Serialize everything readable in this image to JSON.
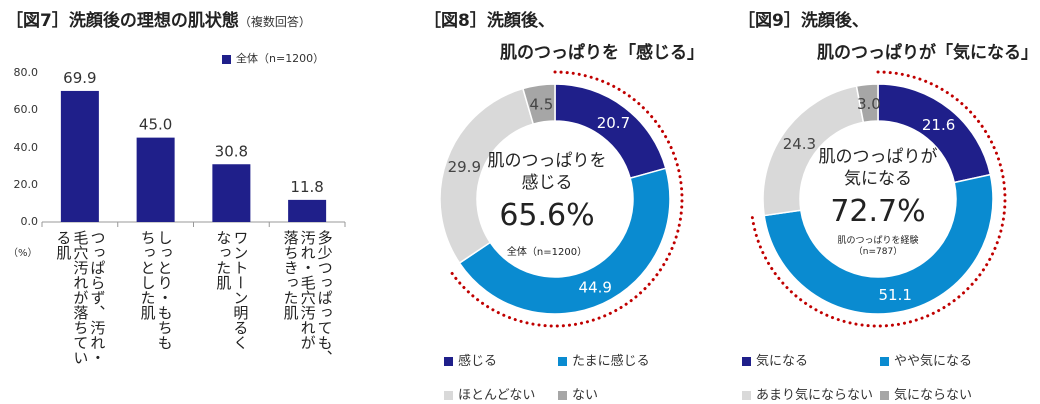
{
  "fig7": {
    "title": "［図7］洗顔後の理想の肌状態",
    "subtitle": "（複数回答）",
    "unit": "（%）",
    "chart_data": {
      "type": "bar",
      "title": "［図7］洗顔後の理想の肌状態（複数回答）",
      "ylabel": "（%）",
      "ylim": [
        0,
        80
      ],
      "yticks": [
        "80.0",
        "60.0",
        "40.0",
        "20.0",
        "0.0"
      ],
      "legend": "全体（n=1200）",
      "categories": [
        "つっぱらず、汚れ・毛穴汚れが落ちている肌",
        "しっとり・もちもちっとした肌",
        "ワントーン明るくなった肌",
        "多少つっぱっても、汚れ・毛穴汚れが落ちきった肌"
      ],
      "category_lines": [
        [
          "つっぱらず、汚れ・",
          "毛穴汚れが落ちてい",
          "る肌"
        ],
        [
          "しっとり・もちも",
          "ちっとした肌"
        ],
        [
          "ワントーン明るく",
          "なった肌"
        ],
        [
          "多少つっぱっても、",
          "汚れ・毛穴汚れが",
          "落ちきった肌"
        ]
      ],
      "values": [
        69.9,
        45.0,
        30.8,
        11.8
      ],
      "value_labels": [
        "69.9",
        "45.0",
        "30.8",
        "11.8"
      ],
      "color": "#1f1f8a"
    }
  },
  "fig8": {
    "title_line1": "［図8］洗顔後、",
    "title_line2": "肌のつっぱりを「感じる」",
    "center_line1": "肌のつっぱりを",
    "center_line2": "感じる",
    "center_value": "65.6%",
    "center_note": "全体（n=1200）",
    "chart_data": {
      "type": "pie",
      "title": "［図8］洗顔後、肌のつっぱりを「感じる」",
      "categories": [
        "感じる",
        "たまに感じる",
        "ほとんどない",
        "ない"
      ],
      "values": [
        20.7,
        44.9,
        29.9,
        4.5
      ],
      "value_labels": [
        "20.7",
        "44.9",
        "29.9",
        "4.5"
      ],
      "colors": [
        "#1f1f8a",
        "#0a8bd0",
        "#d9d9d9",
        "#a6a6a6"
      ],
      "highlight_total": "65.6%"
    }
  },
  "fig9": {
    "title_line1": "［図9］洗顔後、",
    "title_line2": "肌のつっぱりが「気になる」",
    "center_line1": "肌のつっぱりが",
    "center_line2": "気になる",
    "center_value": "72.7%",
    "center_note1": "肌のつっぱりを経験",
    "center_note2": "（n=787）",
    "chart_data": {
      "type": "pie",
      "title": "［図9］洗顔後、肌のつっぱりが「気になる」",
      "categories": [
        "気になる",
        "やや気になる",
        "あまり気にならない",
        "気にならない"
      ],
      "values": [
        21.6,
        51.1,
        24.3,
        3.0
      ],
      "value_labels": [
        "21.6",
        "51.1",
        "24.3",
        "3.0"
      ],
      "colors": [
        "#1f1f8a",
        "#0a8bd0",
        "#d9d9d9",
        "#a6a6a6"
      ],
      "highlight_total": "72.7%"
    }
  }
}
